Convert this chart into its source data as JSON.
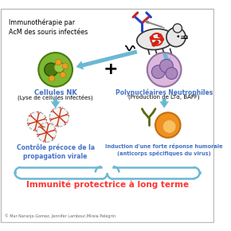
{
  "title_text": "Immunothérapie par\nAcM des souris infectées",
  "nk_label": "Cellules NK",
  "nk_sublabel": "(Lyse de cellules infectées)",
  "neutro_label": "Polynucléaires Neutrophiles",
  "neutro_sublabel": "(Production de LTα, BAFF)",
  "left_outcome": "Contrôle précoce de la\npropagation virale",
  "right_outcome": "Induction d'une forte réponse humorale\n(anticorps spécifiques du virus)",
  "bottom_label": "Immunité protectrice à long terme",
  "copyright": "© Mar Naranjo-Gomez, Jennifer Lambour,Mireia Pelegrin",
  "arrow_color": "#6BB8D4",
  "label_color": "#4472C4",
  "bottom_text_color": "#FF3333",
  "bg_color": "#FFFFFF",
  "border_color": "#BBBBBB",
  "nk_green": "#7DB832",
  "nk_dark": "#4A7A10",
  "nk_orange": "#E8A020",
  "neutro_pink": "#DDB8DD",
  "neutro_purple": "#AA88BB",
  "virus_red": "#CC3311",
  "antibody_olive": "#5A6A10",
  "bcell_orange": "#F09020",
  "bcell_light": "#F8C060"
}
